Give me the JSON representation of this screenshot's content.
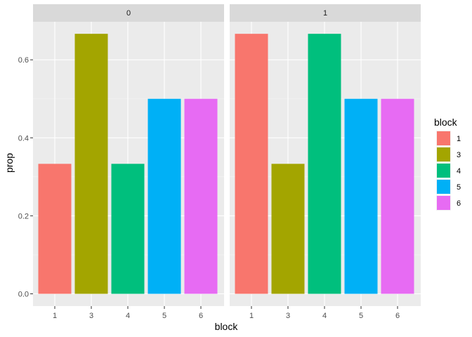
{
  "chart_data": {
    "type": "bar",
    "facet_variable": "",
    "facets": [
      "0",
      "1"
    ],
    "categories": [
      "1",
      "3",
      "4",
      "5",
      "6"
    ],
    "series": [
      {
        "facet": "0",
        "values": [
          0.3333,
          0.6667,
          0.3333,
          0.5,
          0.5
        ]
      },
      {
        "facet": "1",
        "values": [
          0.6667,
          0.3333,
          0.6667,
          0.5,
          0.5
        ]
      }
    ],
    "xlabel": "block",
    "ylabel": "prop",
    "ylim": [
      0,
      0.7
    ],
    "yticks": [
      "0.0",
      "0.2",
      "0.4",
      "0.6"
    ],
    "ytick_values": [
      0,
      0.2,
      0.4,
      0.6
    ],
    "grid": true,
    "legend": {
      "title": "block",
      "position": "right",
      "entries": [
        "1",
        "3",
        "4",
        "5",
        "6"
      ]
    },
    "colors": {
      "1": "#F8766D",
      "3": "#A3A500",
      "4": "#00BF7D",
      "5": "#00B0F6",
      "6": "#E76BF3"
    },
    "panel_background": "#EBEBEB",
    "strip_background": "#D9D9D9"
  }
}
